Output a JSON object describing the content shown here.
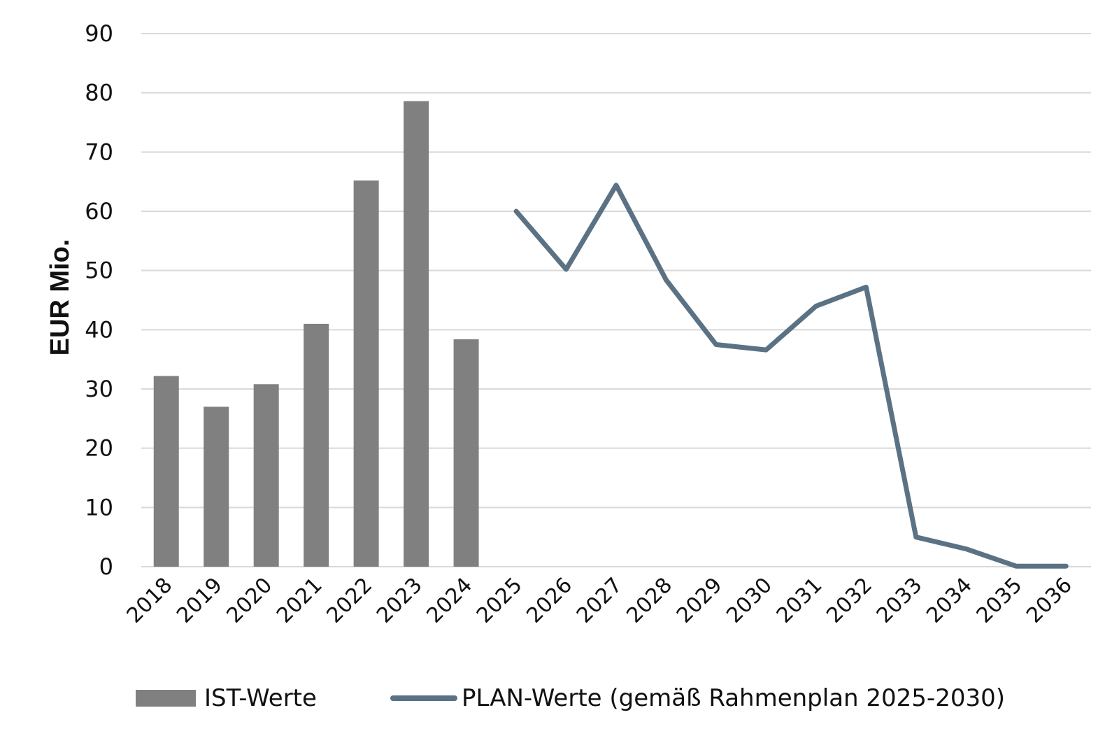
{
  "chart_data": {
    "type": "bar",
    "title": "",
    "xlabel": "",
    "ylabel": "EUR Mio.",
    "ylim": [
      0,
      90
    ],
    "yticks": [
      0,
      10,
      20,
      30,
      40,
      50,
      60,
      70,
      80,
      90
    ],
    "grid": true,
    "legend_position": "bottom",
    "categories": [
      "2018",
      "2019",
      "2020",
      "2021",
      "2022",
      "2023",
      "2024",
      "2025",
      "2026",
      "2027",
      "2028",
      "2029",
      "2030",
      "2031",
      "2032",
      "2033",
      "2034",
      "2035",
      "2036"
    ],
    "series": [
      {
        "name": "IST-Werte",
        "kind": "bar",
        "color": "#808080",
        "x": [
          "2018",
          "2019",
          "2020",
          "2021",
          "2022",
          "2023",
          "2024"
        ],
        "values": [
          32.2,
          27.0,
          30.8,
          41.0,
          65.2,
          78.6,
          38.4
        ]
      },
      {
        "name": "PLAN-Werte (gemäß Rahmenplan 2025-2030)",
        "kind": "line",
        "color": "#5b7285",
        "x": [
          "2025",
          "2026",
          "2027",
          "2028",
          "2029",
          "2030",
          "2031",
          "2032",
          "2033",
          "2034",
          "2035",
          "2036"
        ],
        "values": [
          60.0,
          50.2,
          64.4,
          48.4,
          37.5,
          36.6,
          44.0,
          47.2,
          5.0,
          3.0,
          0.1,
          0.1
        ]
      }
    ]
  }
}
